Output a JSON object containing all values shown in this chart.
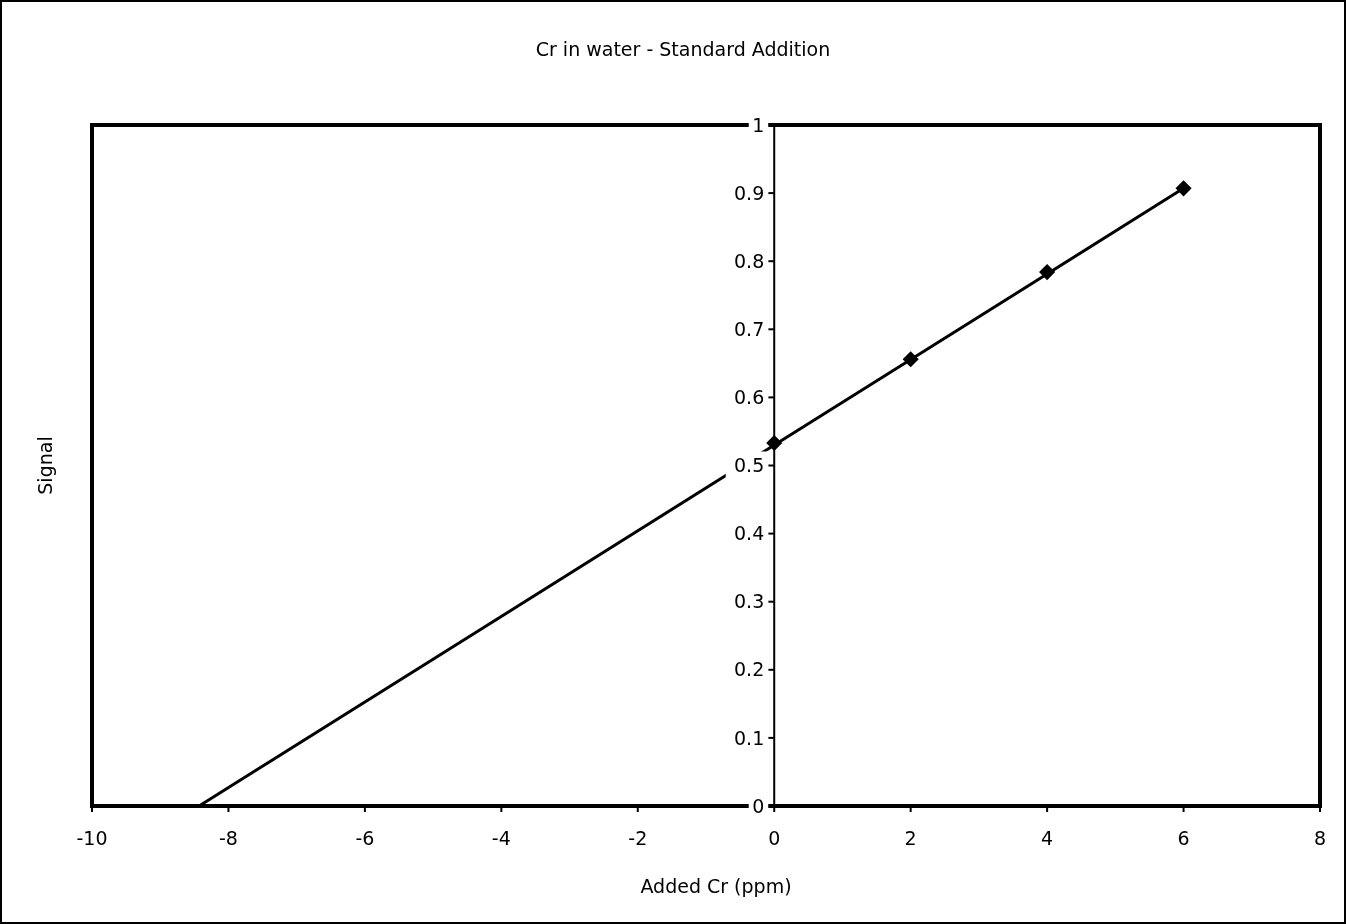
{
  "chart_data": {
    "type": "scatter",
    "title": "Cr in water - Standard Addition",
    "xlabel": "Added Cr (ppm)",
    "ylabel": "Signal",
    "xlim": [
      -10,
      8
    ],
    "xticks": [
      -10,
      -8,
      -6,
      -4,
      -2,
      0,
      2,
      4,
      6,
      8
    ],
    "ylim": [
      0,
      1
    ],
    "yticks": [
      0,
      0.1,
      0.2,
      0.3,
      0.4,
      0.5,
      0.6,
      0.7,
      0.8,
      0.9,
      1
    ],
    "grid": false,
    "series": [
      {
        "color": "#000000",
        "marker": "diamond",
        "x": [
          0,
          2,
          4,
          6
        ],
        "values": [
          0.533,
          0.656,
          0.784,
          0.907
        ]
      },
      {
        "type": "line",
        "color": "#000000",
        "marker": "none",
        "x": [
          -8.43,
          6
        ],
        "values": [
          0,
          0.907
        ]
      }
    ]
  }
}
